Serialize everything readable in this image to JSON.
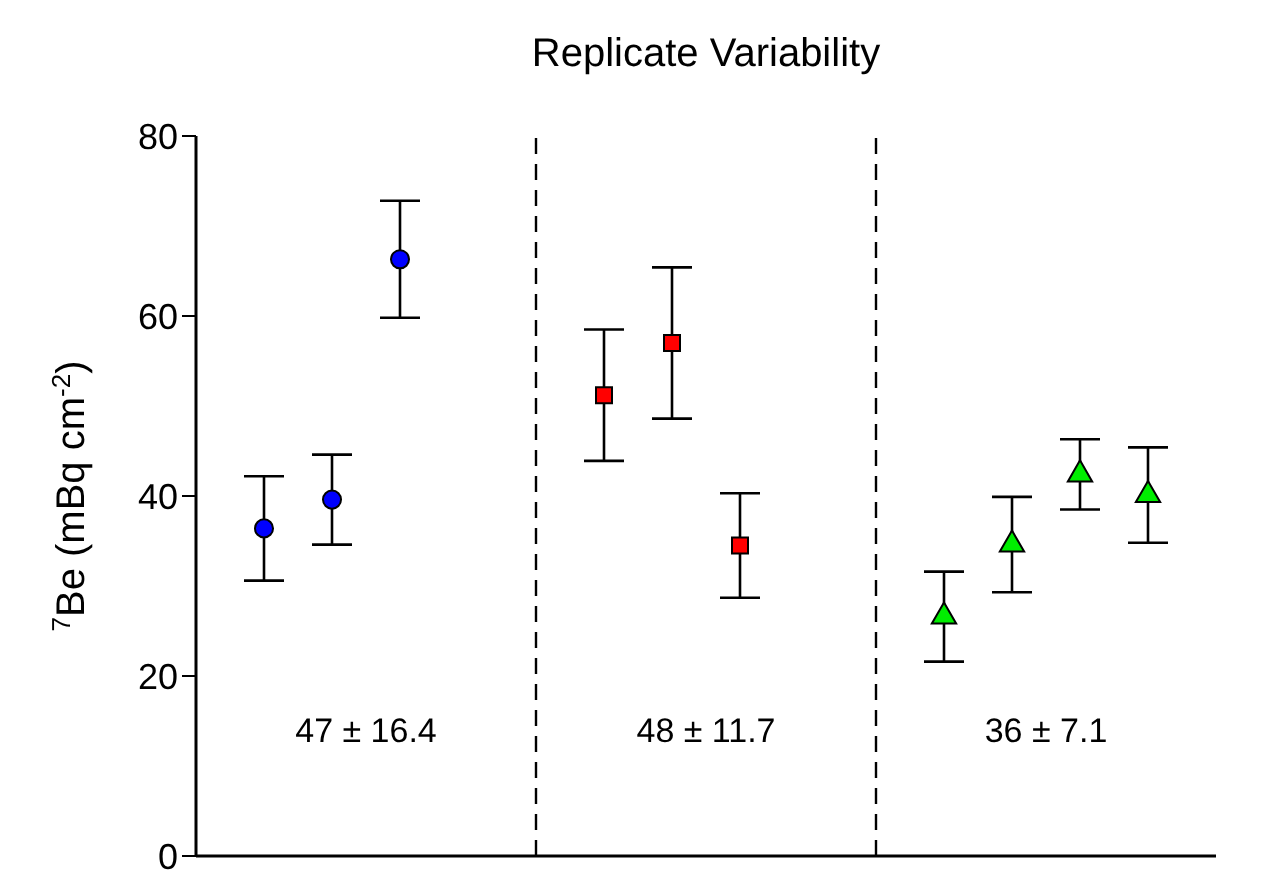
{
  "chart_data": {
    "type": "scatter",
    "title": "Replicate Variability",
    "ylabel": "$^{7}$Be (mBq cm$^{-2}$)",
    "categories": [
      null,
      null,
      null,
      null,
      null,
      null,
      null,
      null,
      null,
      null,
      null,
      null,
      null,
      null
    ],
    "ylim": [
      0,
      80
    ],
    "yticks": [
      0,
      20,
      40,
      60,
      80
    ],
    "tick_labels": "y",
    "grid": false,
    "legend": false,
    "series": [
      {
        "color": "#0000ff",
        "marker": "circle",
        "values": [
          36.4,
          39.6,
          66.3,
          null,
          null,
          null,
          null,
          null,
          null,
          null,
          null,
          null,
          null,
          null
        ],
        "errors": [
          5.8,
          5,
          6.5,
          null,
          null,
          null,
          null,
          null,
          null,
          null,
          null,
          null,
          null,
          null
        ]
      },
      {
        "color": "#ff0000",
        "marker": "square",
        "values": [
          null,
          null,
          null,
          null,
          null,
          51.2,
          57.0,
          34.5,
          null,
          null,
          null,
          null,
          null,
          null
        ],
        "errors": [
          null,
          null,
          null,
          null,
          null,
          7.3,
          8.4,
          5.8,
          null,
          null,
          null,
          null,
          null,
          null
        ]
      },
      {
        "color": "#00ee00",
        "marker": "triangle",
        "values": [
          null,
          null,
          null,
          null,
          null,
          null,
          null,
          null,
          null,
          null,
          26.6,
          34.6,
          42.4,
          40.1
        ],
        "errors": [
          null,
          null,
          null,
          null,
          null,
          null,
          null,
          null,
          null,
          null,
          5,
          5.3,
          3.9,
          5.3
        ]
      }
    ],
    "annotations": [
      "47 ± 16.4",
      "48 ± 11.7",
      "36 ± 7.1"
    ]
  }
}
